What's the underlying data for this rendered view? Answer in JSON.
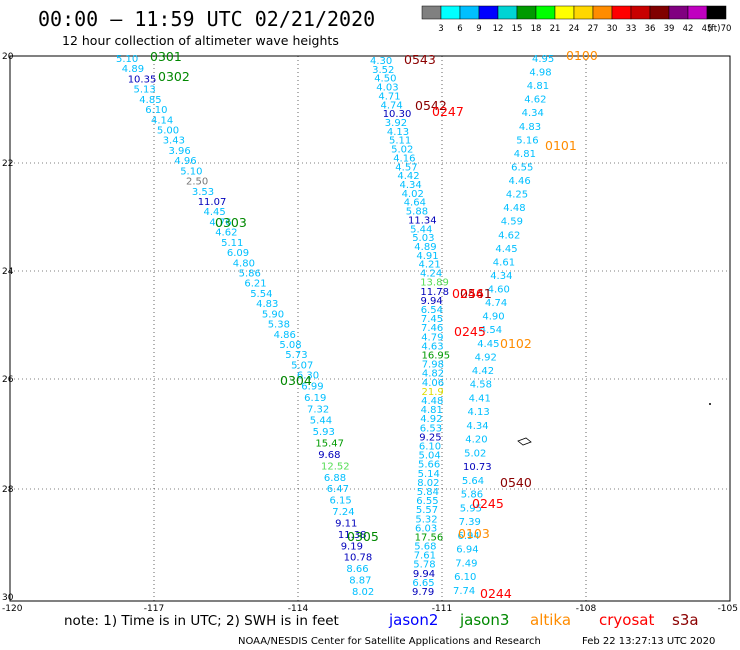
{
  "header": {
    "title": "00:00 – 11:59 UTC 02/21/2020",
    "subtitle": "12 hour collection of altimeter wave heights"
  },
  "color_scale": {
    "labels": [
      "3",
      "6",
      "9",
      "12",
      "15",
      "18",
      "21",
      "24",
      "27",
      "30",
      "33",
      "36",
      "39",
      "42",
      "45",
      "70",
      "(ft)"
    ],
    "colors": [
      "#808080",
      "#00ffff",
      "#00bfff",
      "#0000ff",
      "#00d4d4",
      "#009a00",
      "#00ff00",
      "#ffff00",
      "#ffd700",
      "#ff8c00",
      "#ff0000",
      "#c80000",
      "#800000",
      "#800080",
      "#c000c0",
      "#000000"
    ]
  },
  "axes": {
    "y_labels": [
      "20",
      "22",
      "24",
      "26",
      "28",
      "30"
    ],
    "x_labels": [
      "-120",
      "-117",
      "-114",
      "-111",
      "-108",
      "-105"
    ]
  },
  "tracks": [
    {
      "name": "track-0301",
      "color": "#00bfff",
      "points": [
        {
          "v": "5.10",
          "c": "#00bfff"
        },
        {
          "v": "4.89",
          "c": "#00bfff"
        },
        {
          "v": "10.35",
          "c": "#0000bb"
        },
        {
          "v": "5.13",
          "c": "#00bfff"
        },
        {
          "v": "4.85",
          "c": "#00bfff"
        },
        {
          "v": "6.10",
          "c": "#00bfff"
        },
        {
          "v": "4.14",
          "c": "#00bfff"
        },
        {
          "v": "5.00",
          "c": "#00bfff"
        },
        {
          "v": "3.43",
          "c": "#00bfff"
        },
        {
          "v": "3.96",
          "c": "#00bfff"
        },
        {
          "v": "4.96",
          "c": "#00bfff"
        },
        {
          "v": "5.10",
          "c": "#00bfff"
        },
        {
          "v": "2.50",
          "c": "#777777"
        },
        {
          "v": "3.53",
          "c": "#00bfff"
        },
        {
          "v": "11.07",
          "c": "#0000bb"
        },
        {
          "v": "4.45",
          "c": "#00bfff"
        },
        {
          "v": "4.76",
          "c": "#00bfff"
        },
        {
          "v": "4.62",
          "c": "#00bfff"
        },
        {
          "v": "5.11",
          "c": "#00bfff"
        },
        {
          "v": "6.09",
          "c": "#00bfff"
        },
        {
          "v": "4.80",
          "c": "#00bfff"
        },
        {
          "v": "5.86",
          "c": "#00bfff"
        },
        {
          "v": "6.21",
          "c": "#00bfff"
        },
        {
          "v": "5.54",
          "c": "#00bfff"
        },
        {
          "v": "4.83",
          "c": "#00bfff"
        },
        {
          "v": "5.90",
          "c": "#00bfff"
        },
        {
          "v": "5.38",
          "c": "#00bfff"
        },
        {
          "v": "4.86",
          "c": "#00bfff"
        },
        {
          "v": "5.08",
          "c": "#00bfff"
        },
        {
          "v": "5.73",
          "c": "#00bfff"
        },
        {
          "v": "5.07",
          "c": "#00bfff"
        },
        {
          "v": "6.30",
          "c": "#00bfff"
        },
        {
          "v": "6.99",
          "c": "#00bfff"
        },
        {
          "v": "6.19",
          "c": "#00bfff"
        },
        {
          "v": "7.32",
          "c": "#00bfff"
        },
        {
          "v": "5.44",
          "c": "#00bfff"
        },
        {
          "v": "5.93",
          "c": "#00bfff"
        },
        {
          "v": "15.47",
          "c": "#009a00"
        },
        {
          "v": "9.68",
          "c": "#0000bb"
        },
        {
          "v": "12.52",
          "c": "#55dd55"
        },
        {
          "v": "6.88",
          "c": "#00bfff"
        },
        {
          "v": "6.47",
          "c": "#00bfff"
        },
        {
          "v": "6.15",
          "c": "#00bfff"
        },
        {
          "v": "7.24",
          "c": "#00bfff"
        },
        {
          "v": "9.11",
          "c": "#0000bb"
        },
        {
          "v": "11.38",
          "c": "#0000bb"
        },
        {
          "v": "9.19",
          "c": "#0000bb"
        },
        {
          "v": "10.78",
          "c": "#0000bb"
        },
        {
          "v": "8.66",
          "c": "#00bfff"
        },
        {
          "v": "8.87",
          "c": "#00bfff"
        },
        {
          "v": "8.02",
          "c": "#00bfff"
        }
      ]
    },
    {
      "name": "track-0100",
      "color": "#00bfff",
      "points": [
        {
          "v": "4.95",
          "c": "#00bfff"
        },
        {
          "v": "4.98",
          "c": "#00bfff"
        },
        {
          "v": "4.81",
          "c": "#00bfff"
        },
        {
          "v": "4.62",
          "c": "#00bfff"
        },
        {
          "v": "4.34",
          "c": "#00bfff"
        },
        {
          "v": "4.83",
          "c": "#00bfff"
        },
        {
          "v": "5.16",
          "c": "#00bfff"
        },
        {
          "v": "4.81",
          "c": "#00bfff"
        },
        {
          "v": "6.55",
          "c": "#00bfff"
        },
        {
          "v": "4.46",
          "c": "#00bfff"
        },
        {
          "v": "4.25",
          "c": "#00bfff"
        },
        {
          "v": "4.48",
          "c": "#00bfff"
        },
        {
          "v": "4.59",
          "c": "#00bfff"
        },
        {
          "v": "4.62",
          "c": "#00bfff"
        },
        {
          "v": "4.45",
          "c": "#00bfff"
        },
        {
          "v": "4.61",
          "c": "#00bfff"
        },
        {
          "v": "4.34",
          "c": "#00bfff"
        },
        {
          "v": "4.60",
          "c": "#00bfff"
        },
        {
          "v": "4.74",
          "c": "#00bfff"
        },
        {
          "v": "4.90",
          "c": "#00bfff"
        },
        {
          "v": "4.54",
          "c": "#00bfff"
        },
        {
          "v": "4.45",
          "c": "#00bfff"
        },
        {
          "v": "4.92",
          "c": "#00bfff"
        },
        {
          "v": "4.42",
          "c": "#00bfff"
        },
        {
          "v": "4.58",
          "c": "#00bfff"
        },
        {
          "v": "4.41",
          "c": "#00bfff"
        },
        {
          "v": "4.13",
          "c": "#00bfff"
        },
        {
          "v": "4.34",
          "c": "#00bfff"
        },
        {
          "v": "4.20",
          "c": "#00bfff"
        },
        {
          "v": "5.02",
          "c": "#00bfff"
        },
        {
          "v": "10.73",
          "c": "#0000bb"
        },
        {
          "v": "5.64",
          "c": "#00bfff"
        },
        {
          "v": "5.86",
          "c": "#00bfff"
        },
        {
          "v": "5.95",
          "c": "#00bfff"
        },
        {
          "v": "7.39",
          "c": "#00bfff"
        },
        {
          "v": "6.94",
          "c": "#00bfff"
        },
        {
          "v": "6.94",
          "c": "#00bfff"
        },
        {
          "v": "7.49",
          "c": "#00bfff"
        },
        {
          "v": "6.10",
          "c": "#00bfff"
        },
        {
          "v": "7.74",
          "c": "#00bfff"
        }
      ]
    },
    {
      "name": "track-0543",
      "color": "#00bfff",
      "points": [
        {
          "v": "4.30",
          "c": "#00bfff"
        },
        {
          "v": "3.52",
          "c": "#00bfff"
        },
        {
          "v": "4.50",
          "c": "#00bfff"
        },
        {
          "v": "4.03",
          "c": "#00bfff"
        },
        {
          "v": "4.71",
          "c": "#00bfff"
        },
        {
          "v": "4.74",
          "c": "#00bfff"
        },
        {
          "v": "10.30",
          "c": "#0000bb"
        },
        {
          "v": "3.92",
          "c": "#00bfff"
        },
        {
          "v": "4.13",
          "c": "#00bfff"
        },
        {
          "v": "5.11",
          "c": "#00bfff"
        },
        {
          "v": "5.02",
          "c": "#00bfff"
        },
        {
          "v": "4.16",
          "c": "#00bfff"
        },
        {
          "v": "4.57",
          "c": "#00bfff"
        },
        {
          "v": "4.42",
          "c": "#00bfff"
        },
        {
          "v": "4.34",
          "c": "#00bfff"
        },
        {
          "v": "4.02",
          "c": "#00bfff"
        },
        {
          "v": "4.64",
          "c": "#00bfff"
        },
        {
          "v": "5.88",
          "c": "#00bfff"
        },
        {
          "v": "11.34",
          "c": "#0000bb"
        },
        {
          "v": "5.44",
          "c": "#00bfff"
        },
        {
          "v": "5.03",
          "c": "#00bfff"
        },
        {
          "v": "4.89",
          "c": "#00bfff"
        },
        {
          "v": "4.91",
          "c": "#00bfff"
        },
        {
          "v": "4.21",
          "c": "#00bfff"
        },
        {
          "v": "4.24",
          "c": "#00bfff"
        },
        {
          "v": "13.89",
          "c": "#55dd55"
        },
        {
          "v": "11.78",
          "c": "#0000bb"
        },
        {
          "v": "9.94",
          "c": "#0000bb"
        },
        {
          "v": "6.54",
          "c": "#00bfff"
        },
        {
          "v": "7.45",
          "c": "#00bfff"
        },
        {
          "v": "7.46",
          "c": "#00bfff"
        },
        {
          "v": "4.79",
          "c": "#00bfff"
        },
        {
          "v": "4.63",
          "c": "#00bfff"
        },
        {
          "v": "16.95",
          "c": "#009a00"
        },
        {
          "v": "7.98",
          "c": "#00bfff"
        },
        {
          "v": "4.82",
          "c": "#00bfff"
        },
        {
          "v": "4.06",
          "c": "#00bfff"
        },
        {
          "v": "21.9",
          "c": "#dddd00"
        },
        {
          "v": "4.48",
          "c": "#00bfff"
        },
        {
          "v": "4.81",
          "c": "#00bfff"
        },
        {
          "v": "4.92",
          "c": "#00bfff"
        },
        {
          "v": "6.53",
          "c": "#00bfff"
        },
        {
          "v": "9.25",
          "c": "#0000bb"
        },
        {
          "v": "6.10",
          "c": "#00bfff"
        },
        {
          "v": "5.04",
          "c": "#00bfff"
        },
        {
          "v": "5.66",
          "c": "#00bfff"
        },
        {
          "v": "5.14",
          "c": "#00bfff"
        },
        {
          "v": "8.02",
          "c": "#00bfff"
        },
        {
          "v": "5.84",
          "c": "#00bfff"
        },
        {
          "v": "6.55",
          "c": "#00bfff"
        },
        {
          "v": "5.57",
          "c": "#00bfff"
        },
        {
          "v": "5.32",
          "c": "#00bfff"
        },
        {
          "v": "6.03",
          "c": "#00bfff"
        },
        {
          "v": "17.56",
          "c": "#009a00"
        },
        {
          "v": "5.68",
          "c": "#00bfff"
        },
        {
          "v": "7.61",
          "c": "#00bfff"
        },
        {
          "v": "5.78",
          "c": "#00bfff"
        },
        {
          "v": "9.94",
          "c": "#0000bb"
        },
        {
          "v": "6.65",
          "c": "#00bfff"
        },
        {
          "v": "9.79",
          "c": "#0000bb"
        }
      ]
    }
  ],
  "pass_labels": [
    {
      "text": "0301",
      "color": "#008800"
    },
    {
      "text": "0302",
      "color": "#008800"
    },
    {
      "text": "0303",
      "color": "#008800"
    },
    {
      "text": "0304",
      "color": "#008800"
    },
    {
      "text": "0305",
      "color": "#008800"
    },
    {
      "text": "0100",
      "color": "#ff8c00"
    },
    {
      "text": "0101",
      "color": "#ff8c00"
    },
    {
      "text": "0102",
      "color": "#ff8c00"
    },
    {
      "text": "0103",
      "color": "#ff8c00"
    },
    {
      "text": "0543",
      "color": "#8b0000"
    },
    {
      "text": "0542",
      "color": "#8b0000"
    },
    {
      "text": "0541",
      "color": "#8b0000"
    },
    {
      "text": "0540",
      "color": "#8b0000"
    },
    {
      "text": "0247",
      "color": "#ff0000"
    },
    {
      "text": "0246",
      "color": "#ff0000"
    },
    {
      "text": "0245",
      "color": "#ff0000"
    },
    {
      "text": "0245",
      "color": "#ff0000"
    },
    {
      "text": "0244",
      "color": "#ff0000"
    }
  ],
  "footer": {
    "note": "note:  1) Time is in UTC;  2) SWH is in feet",
    "satellites": [
      {
        "name": "jason2",
        "color": "#0000ff"
      },
      {
        "name": "jason3",
        "color": "#008800"
      },
      {
        "name": "altika",
        "color": "#ff8c00"
      },
      {
        "name": "cryosat",
        "color": "#ff0000"
      },
      {
        "name": "s3a",
        "color": "#8b0000"
      }
    ],
    "credit": "NOAA/NESDIS Center for Satellite Applications and Research",
    "timestamp": "Feb 22 13:27:13 UTC 2020"
  }
}
